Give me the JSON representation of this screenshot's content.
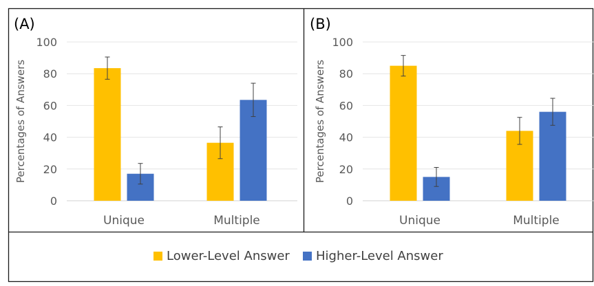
{
  "chart_data": [
    {
      "type": "bar",
      "panel_label": "(A)",
      "categories": [
        "Unique",
        "Multiple"
      ],
      "ylabel": "Percentages of Answers",
      "ylim": [
        0,
        100
      ],
      "yticks": [
        0,
        20,
        40,
        60,
        80,
        100
      ],
      "grid": true,
      "series": [
        {
          "name": "Lower-Level Answer",
          "color": "#FFC000",
          "values": [
            83.5,
            36.5
          ],
          "errors": [
            7,
            10
          ]
        },
        {
          "name": "Higher-Level Answer",
          "color": "#4472C4",
          "values": [
            17,
            63.5
          ],
          "errors": [
            6.5,
            10.5
          ]
        }
      ]
    },
    {
      "type": "bar",
      "panel_label": "(B)",
      "categories": [
        "Unique",
        "Multiple"
      ],
      "ylabel": "Percentages of Answers",
      "ylim": [
        0,
        100
      ],
      "yticks": [
        0,
        20,
        40,
        60,
        80,
        100
      ],
      "grid": true,
      "series": [
        {
          "name": "Lower-Level Answer",
          "color": "#FFC000",
          "values": [
            85,
            44
          ],
          "errors": [
            6.5,
            8.5
          ]
        },
        {
          "name": "Higher-Level Answer",
          "color": "#4472C4",
          "values": [
            15,
            56
          ],
          "errors": [
            6,
            8.5
          ]
        }
      ]
    }
  ],
  "legend": {
    "position": "bottom",
    "items": [
      {
        "label": "Lower-Level Answer",
        "color": "#FFC000"
      },
      {
        "label": "Higher-Level Answer",
        "color": "#4472C4"
      }
    ]
  }
}
